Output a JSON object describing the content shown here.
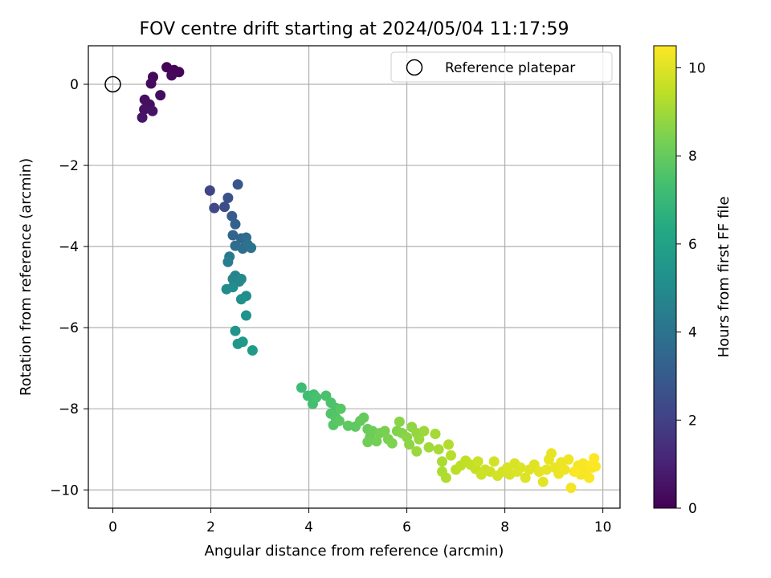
{
  "chart_data": {
    "type": "scatter",
    "title": "FOV centre drift starting at 2024/05/04 11:17:59",
    "xlabel": "Angular distance from reference (arcmin)",
    "ylabel": "Rotation from reference (arcmin)",
    "xlim": [
      -0.5,
      10.35
    ],
    "ylim": [
      -10.45,
      0.95
    ],
    "x_ticks": [
      0,
      2,
      4,
      6,
      8,
      10
    ],
    "y_ticks": [
      0,
      -2,
      -4,
      -6,
      -8,
      -10
    ],
    "x_tick_labels": [
      "0",
      "2",
      "4",
      "6",
      "8",
      "10"
    ],
    "y_tick_labels": [
      "0",
      "−2",
      "−4",
      "−6",
      "−8",
      "−10"
    ],
    "grid": true,
    "legend": {
      "position": "top-right",
      "entries": [
        {
          "label": "Reference platepar",
          "marker": "open-circle"
        }
      ]
    },
    "reference_point": {
      "x": 0,
      "y": 0
    },
    "colorbar": {
      "label": "Hours from first FF file",
      "range": [
        0,
        10.5
      ],
      "ticks": [
        0,
        2,
        4,
        6,
        8,
        10
      ],
      "colormap": "viridis"
    },
    "series": [
      {
        "points": [
          [
            1.1,
            0.42,
            0.05
          ],
          [
            1.25,
            0.35,
            0.1
          ],
          [
            1.35,
            0.3,
            0.15
          ],
          [
            1.2,
            0.22,
            0.2
          ],
          [
            0.82,
            0.18,
            0.25
          ],
          [
            0.78,
            0.02,
            0.3
          ],
          [
            0.97,
            -0.27,
            0.35
          ],
          [
            0.65,
            -0.38,
            0.4
          ],
          [
            0.75,
            -0.5,
            0.45
          ],
          [
            0.64,
            -0.62,
            0.5
          ],
          [
            0.81,
            -0.66,
            0.55
          ],
          [
            0.6,
            -0.82,
            0.6
          ],
          [
            1.98,
            -2.62,
            2.1
          ],
          [
            2.07,
            -3.05,
            2.3
          ],
          [
            2.28,
            -3.02,
            2.5
          ],
          [
            2.35,
            -2.8,
            2.6
          ],
          [
            2.55,
            -2.47,
            2.8
          ],
          [
            2.43,
            -3.25,
            3.0
          ],
          [
            2.5,
            -3.45,
            3.2
          ],
          [
            2.45,
            -3.72,
            3.4
          ],
          [
            2.62,
            -3.8,
            3.5
          ],
          [
            2.72,
            -3.78,
            3.6
          ],
          [
            2.5,
            -3.98,
            3.7
          ],
          [
            2.65,
            -4.05,
            3.8
          ],
          [
            2.75,
            -3.95,
            3.9
          ],
          [
            2.82,
            -4.03,
            4.0
          ],
          [
            2.38,
            -4.25,
            4.2
          ],
          [
            2.35,
            -4.38,
            4.4
          ],
          [
            2.5,
            -4.72,
            4.6
          ],
          [
            2.45,
            -4.8,
            4.7
          ],
          [
            2.58,
            -4.86,
            4.8
          ],
          [
            2.62,
            -4.8,
            4.9
          ],
          [
            2.32,
            -5.05,
            5.0
          ],
          [
            2.45,
            -5.0,
            5.05
          ],
          [
            2.72,
            -5.22,
            5.1
          ],
          [
            2.62,
            -5.3,
            5.2
          ],
          [
            2.72,
            -5.7,
            5.3
          ],
          [
            2.5,
            -6.08,
            5.4
          ],
          [
            2.55,
            -6.4,
            5.5
          ],
          [
            2.65,
            -6.35,
            5.6
          ],
          [
            2.85,
            -6.56,
            5.7
          ],
          [
            3.85,
            -7.48,
            7.2
          ],
          [
            3.98,
            -7.68,
            7.25
          ],
          [
            4.1,
            -7.65,
            7.3
          ],
          [
            4.08,
            -7.88,
            7.35
          ],
          [
            4.15,
            -7.72,
            7.4
          ],
          [
            4.35,
            -7.68,
            7.45
          ],
          [
            4.45,
            -7.85,
            7.5
          ],
          [
            4.55,
            -7.98,
            7.55
          ],
          [
            4.45,
            -8.12,
            7.6
          ],
          [
            4.55,
            -8.22,
            7.65
          ],
          [
            4.5,
            -8.4,
            7.7
          ],
          [
            4.65,
            -8.0,
            7.75
          ],
          [
            4.62,
            -8.3,
            7.8
          ],
          [
            4.8,
            -8.42,
            7.85
          ],
          [
            4.95,
            -8.44,
            7.9
          ],
          [
            5.05,
            -8.3,
            7.95
          ],
          [
            5.12,
            -8.22,
            8.0
          ],
          [
            5.2,
            -8.5,
            8.05
          ],
          [
            5.25,
            -8.7,
            8.1
          ],
          [
            5.3,
            -8.55,
            8.15
          ],
          [
            5.2,
            -8.82,
            8.2
          ],
          [
            5.38,
            -8.8,
            8.25
          ],
          [
            5.45,
            -8.6,
            8.3
          ],
          [
            5.55,
            -8.55,
            8.35
          ],
          [
            5.62,
            -8.75,
            8.4
          ],
          [
            5.7,
            -8.85,
            8.45
          ],
          [
            5.8,
            -8.55,
            8.5
          ],
          [
            5.9,
            -8.6,
            8.55
          ],
          [
            5.85,
            -8.32,
            8.6
          ],
          [
            6.0,
            -8.7,
            8.65
          ],
          [
            6.05,
            -8.88,
            8.7
          ],
          [
            6.1,
            -8.45,
            8.75
          ],
          [
            6.2,
            -8.6,
            8.8
          ],
          [
            6.25,
            -8.75,
            8.85
          ],
          [
            6.2,
            -9.05,
            8.9
          ],
          [
            6.35,
            -8.55,
            8.95
          ],
          [
            6.45,
            -8.95,
            9.0
          ],
          [
            6.58,
            -8.62,
            9.05
          ],
          [
            6.65,
            -9.0,
            9.1
          ],
          [
            6.72,
            -9.3,
            9.15
          ],
          [
            6.72,
            -9.55,
            9.2
          ],
          [
            6.8,
            -9.7,
            9.25
          ],
          [
            6.85,
            -8.88,
            9.3
          ],
          [
            6.9,
            -9.15,
            9.35
          ],
          [
            7.0,
            -9.5,
            9.4
          ],
          [
            7.1,
            -9.4,
            9.45
          ],
          [
            7.2,
            -9.28,
            9.5
          ],
          [
            7.3,
            -9.38,
            9.55
          ],
          [
            7.4,
            -9.48,
            9.6
          ],
          [
            7.45,
            -9.3,
            9.65
          ],
          [
            7.52,
            -9.62,
            9.7
          ],
          [
            7.6,
            -9.5,
            9.72
          ],
          [
            7.7,
            -9.55,
            9.75
          ],
          [
            7.78,
            -9.3,
            9.78
          ],
          [
            7.85,
            -9.65,
            9.8
          ],
          [
            7.95,
            -9.55,
            9.83
          ],
          [
            8.05,
            -9.45,
            9.86
          ],
          [
            8.1,
            -9.62,
            9.88
          ],
          [
            8.2,
            -9.35,
            9.9
          ],
          [
            8.25,
            -9.55,
            9.93
          ],
          [
            8.32,
            -9.45,
            9.95
          ],
          [
            8.42,
            -9.7,
            9.97
          ],
          [
            8.5,
            -9.5,
            10.0
          ],
          [
            8.6,
            -9.38,
            10.03
          ],
          [
            8.7,
            -9.55,
            10.06
          ],
          [
            8.78,
            -9.8,
            10.08
          ],
          [
            8.85,
            -9.5,
            10.1
          ],
          [
            8.9,
            -9.25,
            10.13
          ],
          [
            8.95,
            -9.1,
            10.15
          ],
          [
            9.02,
            -9.45,
            10.18
          ],
          [
            9.1,
            -9.6,
            10.2
          ],
          [
            9.15,
            -9.32,
            10.22
          ],
          [
            9.22,
            -9.5,
            10.25
          ],
          [
            9.3,
            -9.25,
            10.27
          ],
          [
            9.35,
            -9.95,
            10.3
          ],
          [
            9.42,
            -9.55,
            10.32
          ],
          [
            9.5,
            -9.4,
            10.35
          ],
          [
            9.55,
            -9.62,
            10.37
          ],
          [
            9.6,
            -9.35,
            10.4
          ],
          [
            9.65,
            -9.5,
            10.42
          ],
          [
            9.72,
            -9.7,
            10.43
          ],
          [
            9.78,
            -9.45,
            10.45
          ],
          [
            9.82,
            -9.22,
            10.47
          ],
          [
            9.85,
            -9.42,
            10.48
          ],
          [
            9.45,
            -9.55,
            10.49
          ],
          [
            9.75,
            -9.4,
            10.5
          ]
        ]
      }
    ]
  }
}
